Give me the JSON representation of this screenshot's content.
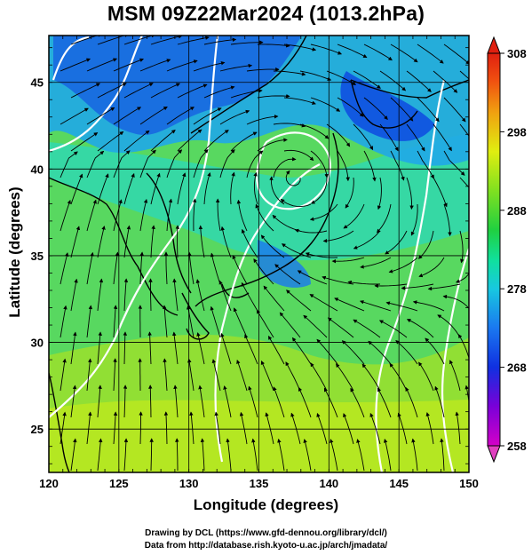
{
  "title": "MSM 09Z22Mar2024 (1013.2hPa)",
  "credits": {
    "line1": "Drawing by DCL (https://www.gfd-dennou.org/library/dcl/)",
    "line2": "Data from http://database.rish.kyoto-u.ac.jp/arch/jmadata/"
  },
  "map_data": {
    "projection": "equirectangular",
    "lon_range": [
      120,
      150
    ],
    "lat_range": [
      22.5,
      47.7
    ],
    "lon_ticks": [
      120,
      125,
      130,
      135,
      140,
      145,
      150
    ],
    "lat_ticks": [
      25,
      30,
      35,
      40,
      45
    ],
    "xlabel": "Longitude (degrees)",
    "ylabel": "Latitude  (degrees)",
    "field": "temperature (K) with streamlines and white isobar contours",
    "colorbar": {
      "min": 258,
      "max": 308,
      "ticks": [
        308,
        298,
        288,
        278,
        268,
        258
      ],
      "colors": [
        "#d400c8",
        "#7a00d8",
        "#1030e0",
        "#1a78f0",
        "#18c8e0",
        "#10e0a0",
        "#20d040",
        "#80e020",
        "#e0ee10",
        "#f0a010",
        "#f05010",
        "#e02010"
      ]
    }
  }
}
